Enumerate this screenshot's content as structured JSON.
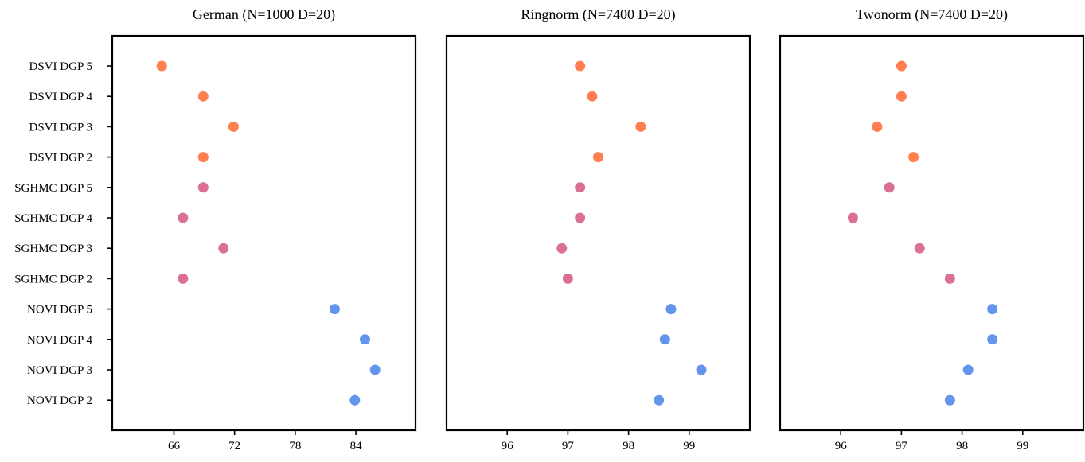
{
  "colors": {
    "DSVI": "#ff7f50",
    "SGHMC": "#db7093",
    "NOVI": "#6495ed"
  },
  "chart_data": [
    {
      "type": "scatter",
      "title": "German  (N=1000  D=20)",
      "categories": [
        "DSVI DGP 5",
        "DSVI DGP 4",
        "DSVI DGP 3",
        "DSVI DGP 2",
        "SGHMC DGP 5",
        "SGHMC DGP 4",
        "SGHMC DGP 3",
        "SGHMC DGP 2",
        "NOVI DGP 5",
        "NOVI DGP 4",
        "NOVI DGP 3",
        "NOVI DGP 2"
      ],
      "values": [
        64.8,
        68.9,
        71.9,
        68.9,
        68.9,
        66.9,
        70.9,
        66.9,
        81.9,
        84.9,
        85.9,
        83.9
      ],
      "xticks": [
        66,
        72,
        78,
        84
      ],
      "xlim": [
        59.9,
        89.9
      ],
      "show_ylabels": true
    },
    {
      "type": "scatter",
      "title": "Ringnorm  (N=7400  D=20)",
      "categories": [
        "DSVI DGP 5",
        "DSVI DGP 4",
        "DSVI DGP 3",
        "DSVI DGP 2",
        "SGHMC DGP 5",
        "SGHMC DGP 4",
        "SGHMC DGP 3",
        "SGHMC DGP 2",
        "NOVI DGP 5",
        "NOVI DGP 4",
        "NOVI DGP 3",
        "NOVI DGP 2"
      ],
      "values": [
        97.2,
        97.4,
        98.2,
        97.5,
        97.2,
        97.2,
        96.9,
        97.0,
        98.7,
        98.6,
        99.2,
        98.5
      ],
      "xticks": [
        96,
        97,
        98,
        99
      ],
      "xlim": [
        95.0,
        100.0
      ],
      "show_ylabels": false
    },
    {
      "type": "scatter",
      "title": "Twonorm  (N=7400  D=20)",
      "categories": [
        "DSVI DGP 5",
        "DSVI DGP 4",
        "DSVI DGP 3",
        "DSVI DGP 2",
        "SGHMC DGP 5",
        "SGHMC DGP 4",
        "SGHMC DGP 3",
        "SGHMC DGP 2",
        "NOVI DGP 5",
        "NOVI DGP 4",
        "NOVI DGP 3",
        "NOVI DGP 2"
      ],
      "values": [
        97.0,
        97.0,
        96.6,
        97.2,
        96.8,
        96.2,
        97.3,
        97.8,
        98.5,
        98.5,
        98.1,
        97.8
      ],
      "xticks": [
        96,
        97,
        98,
        99
      ],
      "xlim": [
        95.0,
        100.0
      ],
      "show_ylabels": false
    }
  ]
}
